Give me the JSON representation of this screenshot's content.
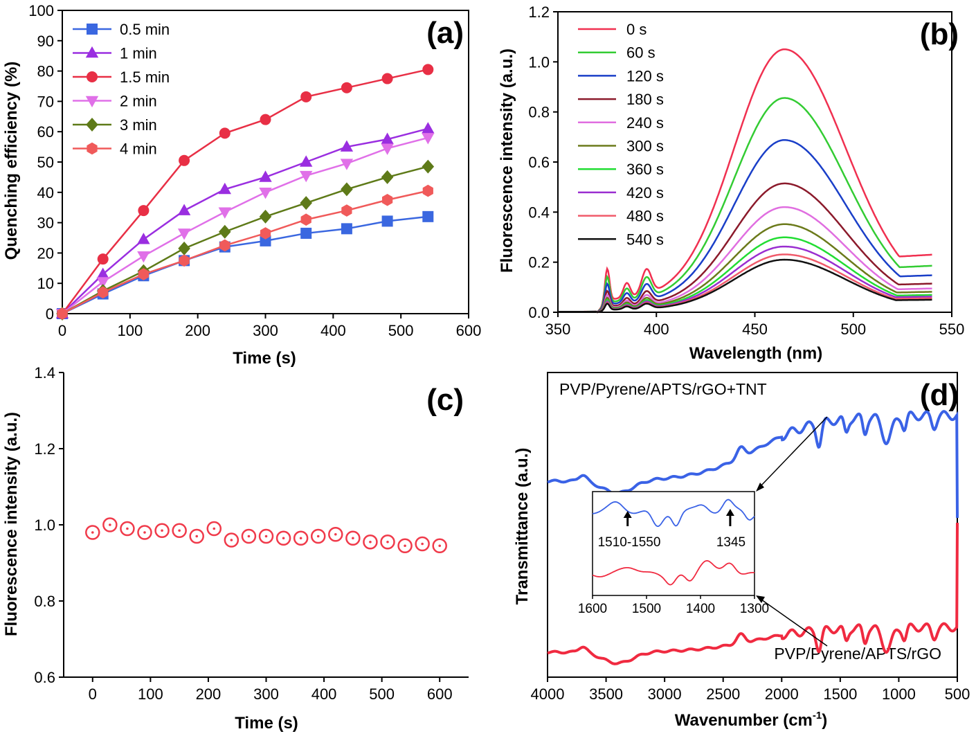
{
  "chart_data": [
    {
      "type": "line",
      "panel_label": "(a)",
      "xlabel": "Time (s)",
      "ylabel": "Quenching efficiency (%)",
      "xlim": [
        0,
        600
      ],
      "ylim": [
        0,
        100
      ],
      "xticks": [
        0,
        100,
        200,
        300,
        400,
        500,
        600
      ],
      "yticks": [
        0,
        10,
        20,
        30,
        40,
        50,
        60,
        70,
        80,
        90,
        100
      ],
      "legend": "top-left",
      "x": [
        0,
        60,
        120,
        180,
        240,
        300,
        360,
        420,
        480,
        540
      ],
      "series": [
        {
          "name": "0.5 min",
          "color": "#3a67e0",
          "marker": "square",
          "values": [
            0,
            6.5,
            12.5,
            17.5,
            22,
            24,
            26.5,
            28,
            30.5,
            32
          ]
        },
        {
          "name": "1 min",
          "color": "#9a2ee0",
          "marker": "triangle-up",
          "values": [
            0,
            13,
            24.5,
            34,
            41,
            45,
            50,
            55,
            57.5,
            61
          ]
        },
        {
          "name": "1.5 min",
          "color": "#e82f45",
          "marker": "circle",
          "values": [
            0,
            18,
            34,
            50.5,
            59.5,
            64,
            71.5,
            74.5,
            77.5,
            80.5
          ]
        },
        {
          "name": "2 min",
          "color": "#e070e8",
          "marker": "triangle-down",
          "values": [
            0,
            10.5,
            19,
            26.5,
            33.5,
            40,
            45.5,
            49.5,
            54.5,
            58
          ]
        },
        {
          "name": "3 min",
          "color": "#5e7a18",
          "marker": "diamond",
          "values": [
            0,
            7.5,
            14,
            21.5,
            27,
            32,
            36.5,
            41,
            45,
            48.5
          ]
        },
        {
          "name": "4 min",
          "color": "#f05a5a",
          "marker": "hexagon",
          "values": [
            0,
            7,
            13,
            17.5,
            22.5,
            26.5,
            31,
            34,
            37.5,
            40.5
          ]
        }
      ]
    },
    {
      "type": "line",
      "panel_label": "(b)",
      "xlabel": "Wavelength (nm)",
      "ylabel": "Fluorescence intensity (a.u.)",
      "xlim": [
        350,
        550
      ],
      "ylim": [
        0,
        1.2
      ],
      "xticks": [
        350,
        400,
        450,
        500,
        550
      ],
      "yticks": [
        "0.0",
        "0.2",
        "0.4",
        "0.6",
        "0.8",
        "1.0",
        "1.2"
      ],
      "legend": "top-left",
      "series": [
        {
          "name": "0 s",
          "color": "#f03050",
          "peak": 1.0,
          "end": 0.18
        },
        {
          "name": "60 s",
          "color": "#33cc33",
          "peak": 0.815,
          "end": 0.145
        },
        {
          "name": "120 s",
          "color": "#1a3fc8",
          "peak": 0.655,
          "end": 0.115
        },
        {
          "name": "180 s",
          "color": "#8b1a2b",
          "peak": 0.49,
          "end": 0.09
        },
        {
          "name": "240 s",
          "color": "#e06ee0",
          "peak": 0.4,
          "end": 0.075
        },
        {
          "name": "300 s",
          "color": "#6b7a1a",
          "peak": 0.335,
          "end": 0.065
        },
        {
          "name": "360 s",
          "color": "#22dd33",
          "peak": 0.285,
          "end": 0.055
        },
        {
          "name": "420 s",
          "color": "#9a2ed0",
          "peak": 0.25,
          "end": 0.05
        },
        {
          "name": "480 s",
          "color": "#f05a6a",
          "peak": 0.22,
          "end": 0.045
        },
        {
          "name": "540 s",
          "color": "#111111",
          "peak": 0.2,
          "end": 0.04
        }
      ]
    },
    {
      "type": "scatter",
      "panel_label": "(c)",
      "xlabel": "Time (s)",
      "ylabel": "Fluorescence intensity (a.u.)",
      "xlim": [
        -50,
        650
      ],
      "ylim": [
        0.6,
        1.4
      ],
      "xticks": [
        0,
        100,
        200,
        300,
        400,
        500,
        600
      ],
      "yticks": [
        "0.6",
        "0.8",
        "1.0",
        "1.2",
        "1.4"
      ],
      "color": "#f03a4a",
      "x": [
        0,
        30,
        60,
        90,
        120,
        150,
        180,
        210,
        240,
        270,
        300,
        330,
        360,
        390,
        420,
        450,
        480,
        510,
        540,
        570,
        600
      ],
      "y": [
        0.98,
        1.0,
        0.99,
        0.98,
        0.985,
        0.985,
        0.97,
        0.99,
        0.96,
        0.97,
        0.97,
        0.965,
        0.965,
        0.97,
        0.975,
        0.965,
        0.955,
        0.955,
        0.945,
        0.95,
        0.945
      ]
    },
    {
      "type": "line",
      "panel_label": "(d)",
      "xlabel": "Wavenumber (cm",
      "xlabel_sup": "-1",
      "xlabel_end": ")",
      "ylabel": "Transmittance (a.u.)",
      "xlim": [
        4000,
        500
      ],
      "xticks": [
        4000,
        3500,
        3000,
        2500,
        2000,
        1500,
        1000,
        500
      ],
      "series": [
        {
          "name": "PVP/Pyrene/APTS/rGO+TNT",
          "color": "#3a62e6"
        },
        {
          "name": "PVP/Pyrene/APTS/rGO",
          "color": "#f02a40"
        }
      ],
      "inset": {
        "xlim": [
          1600,
          1300
        ],
        "xticks": [
          1600,
          1500,
          1400,
          1300
        ],
        "annotations": [
          "1510-1550",
          "1345"
        ]
      }
    }
  ]
}
